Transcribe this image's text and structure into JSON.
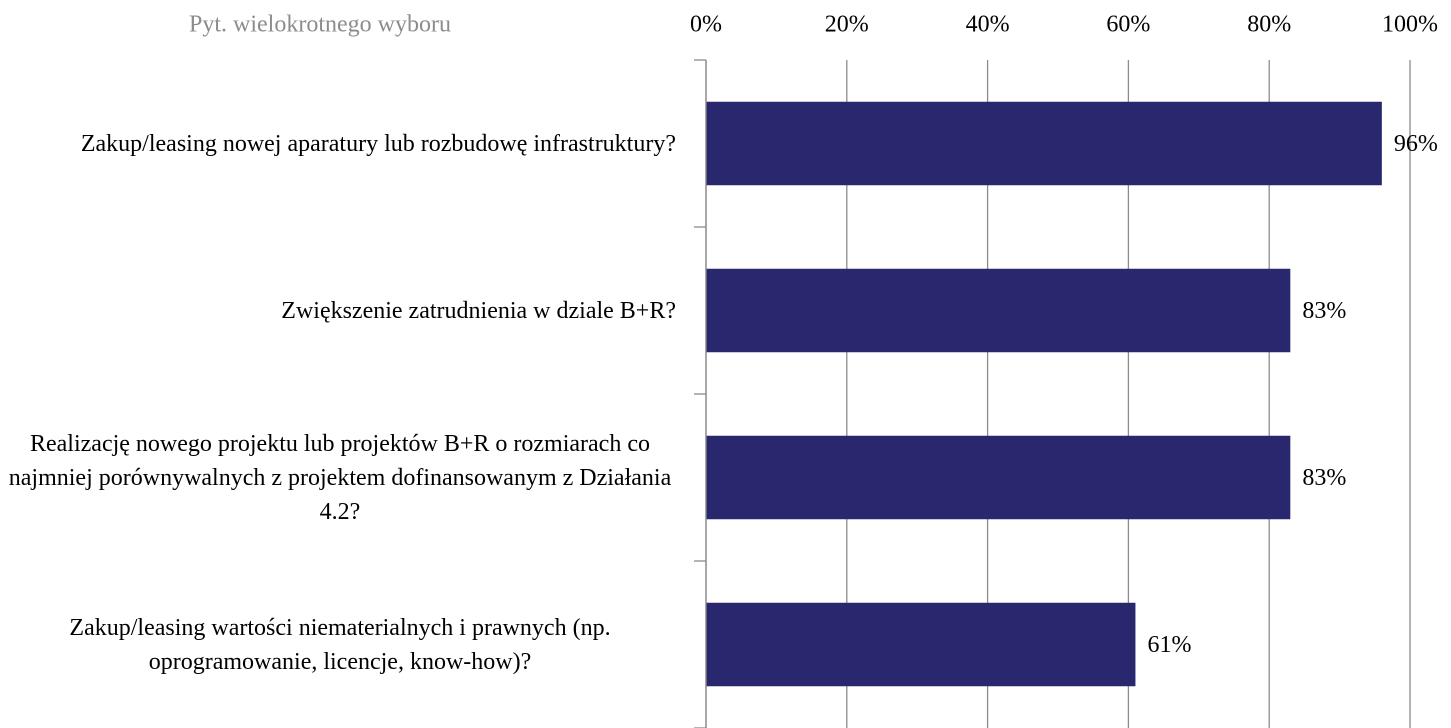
{
  "chart_data": {
    "type": "barh",
    "title": "Pyt. wielokrotnego wyboru",
    "categories": [
      "Zakup/leasing nowej aparatury lub rozbudowę infrastruktury?",
      "Zwiększenie zatrudnienia w dziale B+R?",
      "Realizację nowego projektu lub projektów B+R o rozmiarach co najmniej porównywalnych z projektem dofinansowanym z Działania 4.2?",
      "Zakup/leasing wartości niematerialnych i prawnych (np. oprogramowanie, licencje, know-how)?"
    ],
    "values": [
      96,
      83,
      83,
      61
    ],
    "value_labels": [
      "96%",
      "83%",
      "83%",
      "61%"
    ],
    "color": "#29286f",
    "xlim": [
      0,
      100
    ],
    "xticks": [
      {
        "value": 0,
        "label": "0%"
      },
      {
        "value": 20,
        "label": "20%"
      },
      {
        "value": 40,
        "label": "40%"
      },
      {
        "value": 60,
        "label": "60%"
      },
      {
        "value": 80,
        "label": "80%"
      },
      {
        "value": 100,
        "label": "100%"
      }
    ],
    "grid": true
  }
}
